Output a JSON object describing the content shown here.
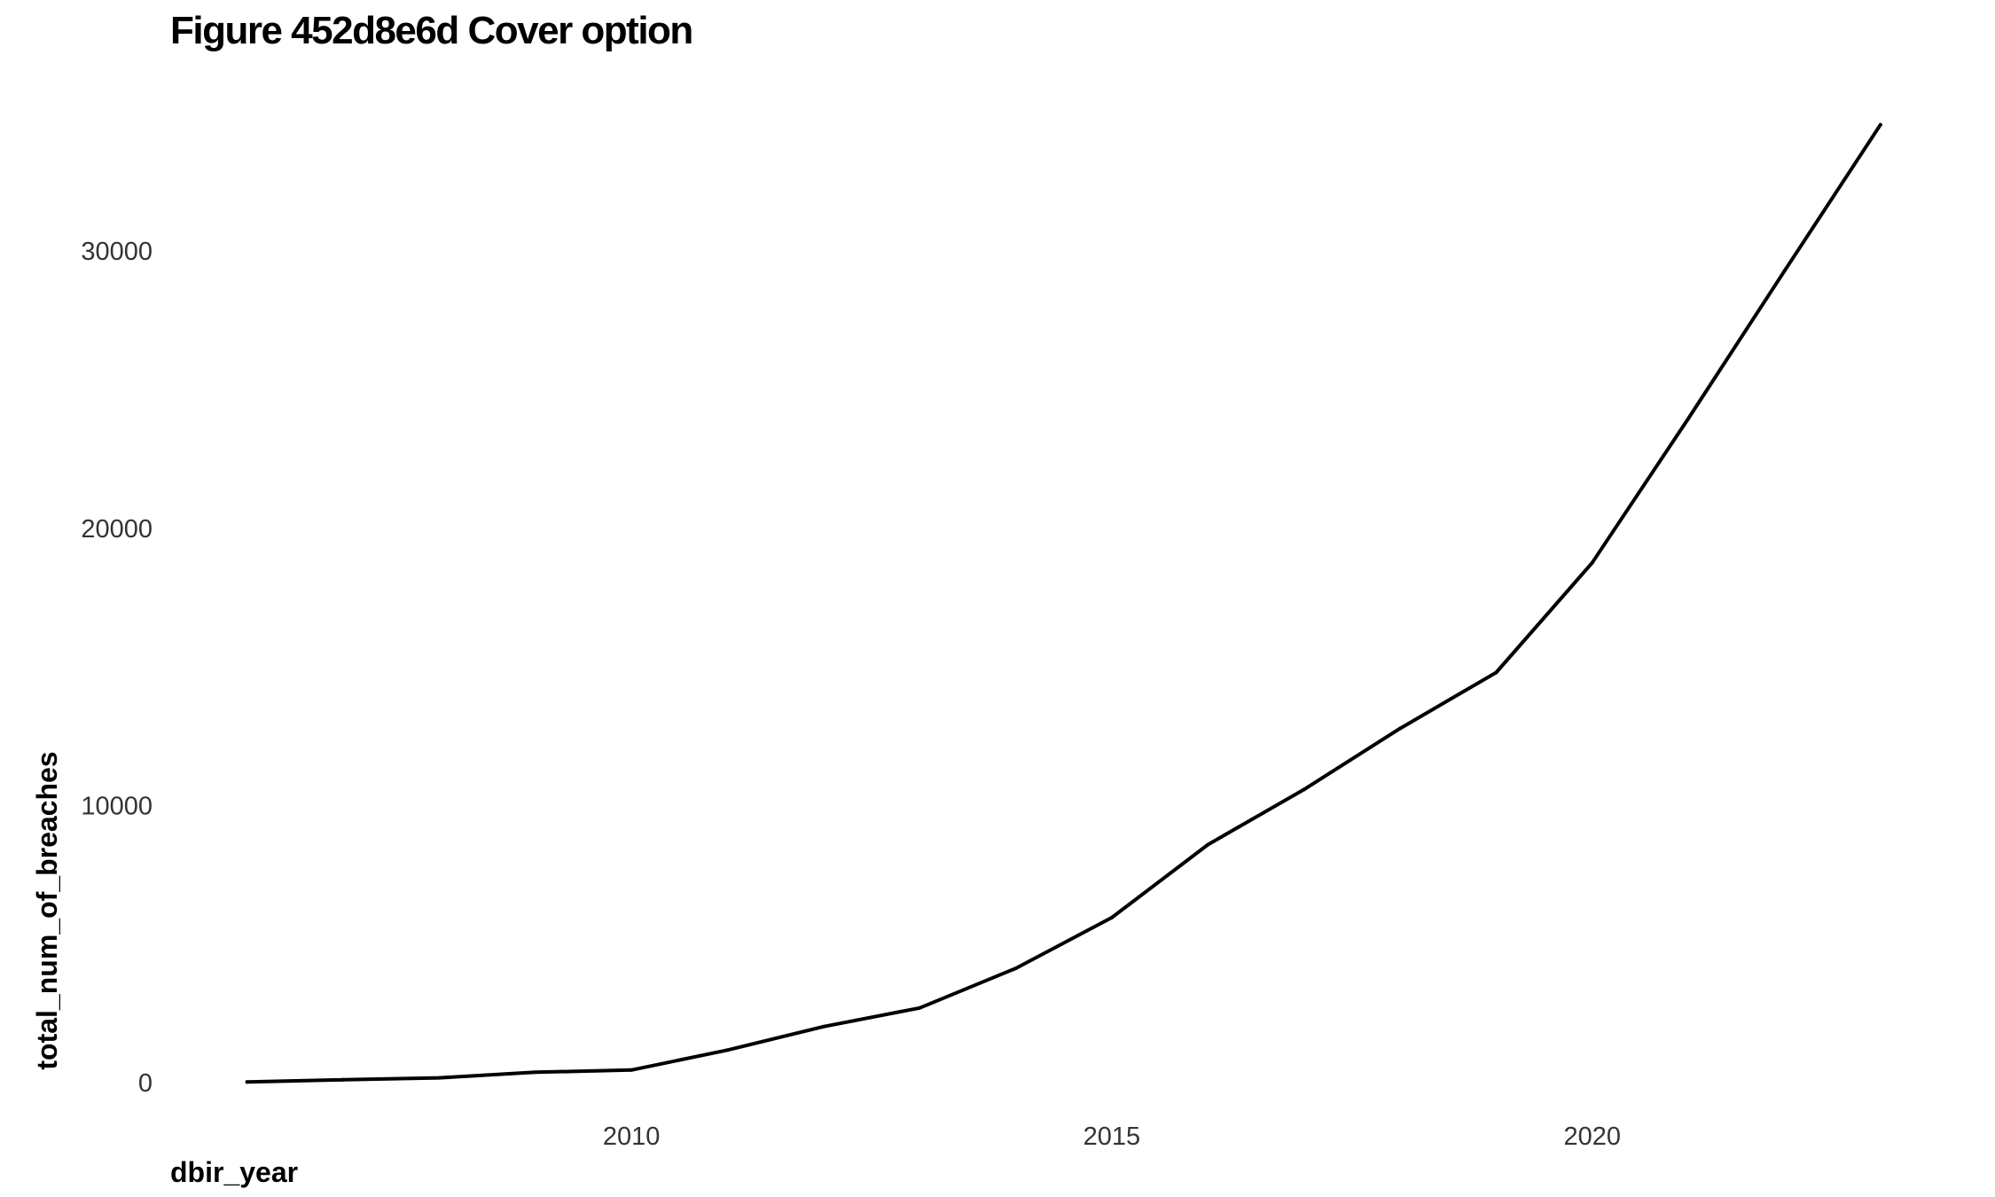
{
  "chart_data": {
    "type": "line",
    "title": "Figure 452d8e6d Cover option",
    "xlabel": "dbir_year",
    "ylabel": "total_num_of_breaches",
    "x": [
      2006,
      2007,
      2008,
      2009,
      2010,
      2011,
      2012,
      2013,
      2014,
      2015,
      2016,
      2017,
      2018,
      2019,
      2020,
      2021,
      2022,
      2023
    ],
    "series": [
      {
        "values": [
          30,
          110,
          180,
          380,
          460,
          1180,
          2030,
          2700,
          4130,
          5960,
          8590,
          10580,
          12780,
          14800,
          18760,
          23960,
          29280,
          34560
        ],
        "color": "#000000"
      }
    ],
    "x_ticks": [
      "2010",
      "2015",
      "2020"
    ],
    "y_ticks": [
      "0",
      "10000",
      "20000",
      "30000"
    ],
    "xlim": [
      2005.2,
      2023.5
    ],
    "ylim": [
      -1400,
      36500
    ],
    "grid": false,
    "legend": "none"
  }
}
